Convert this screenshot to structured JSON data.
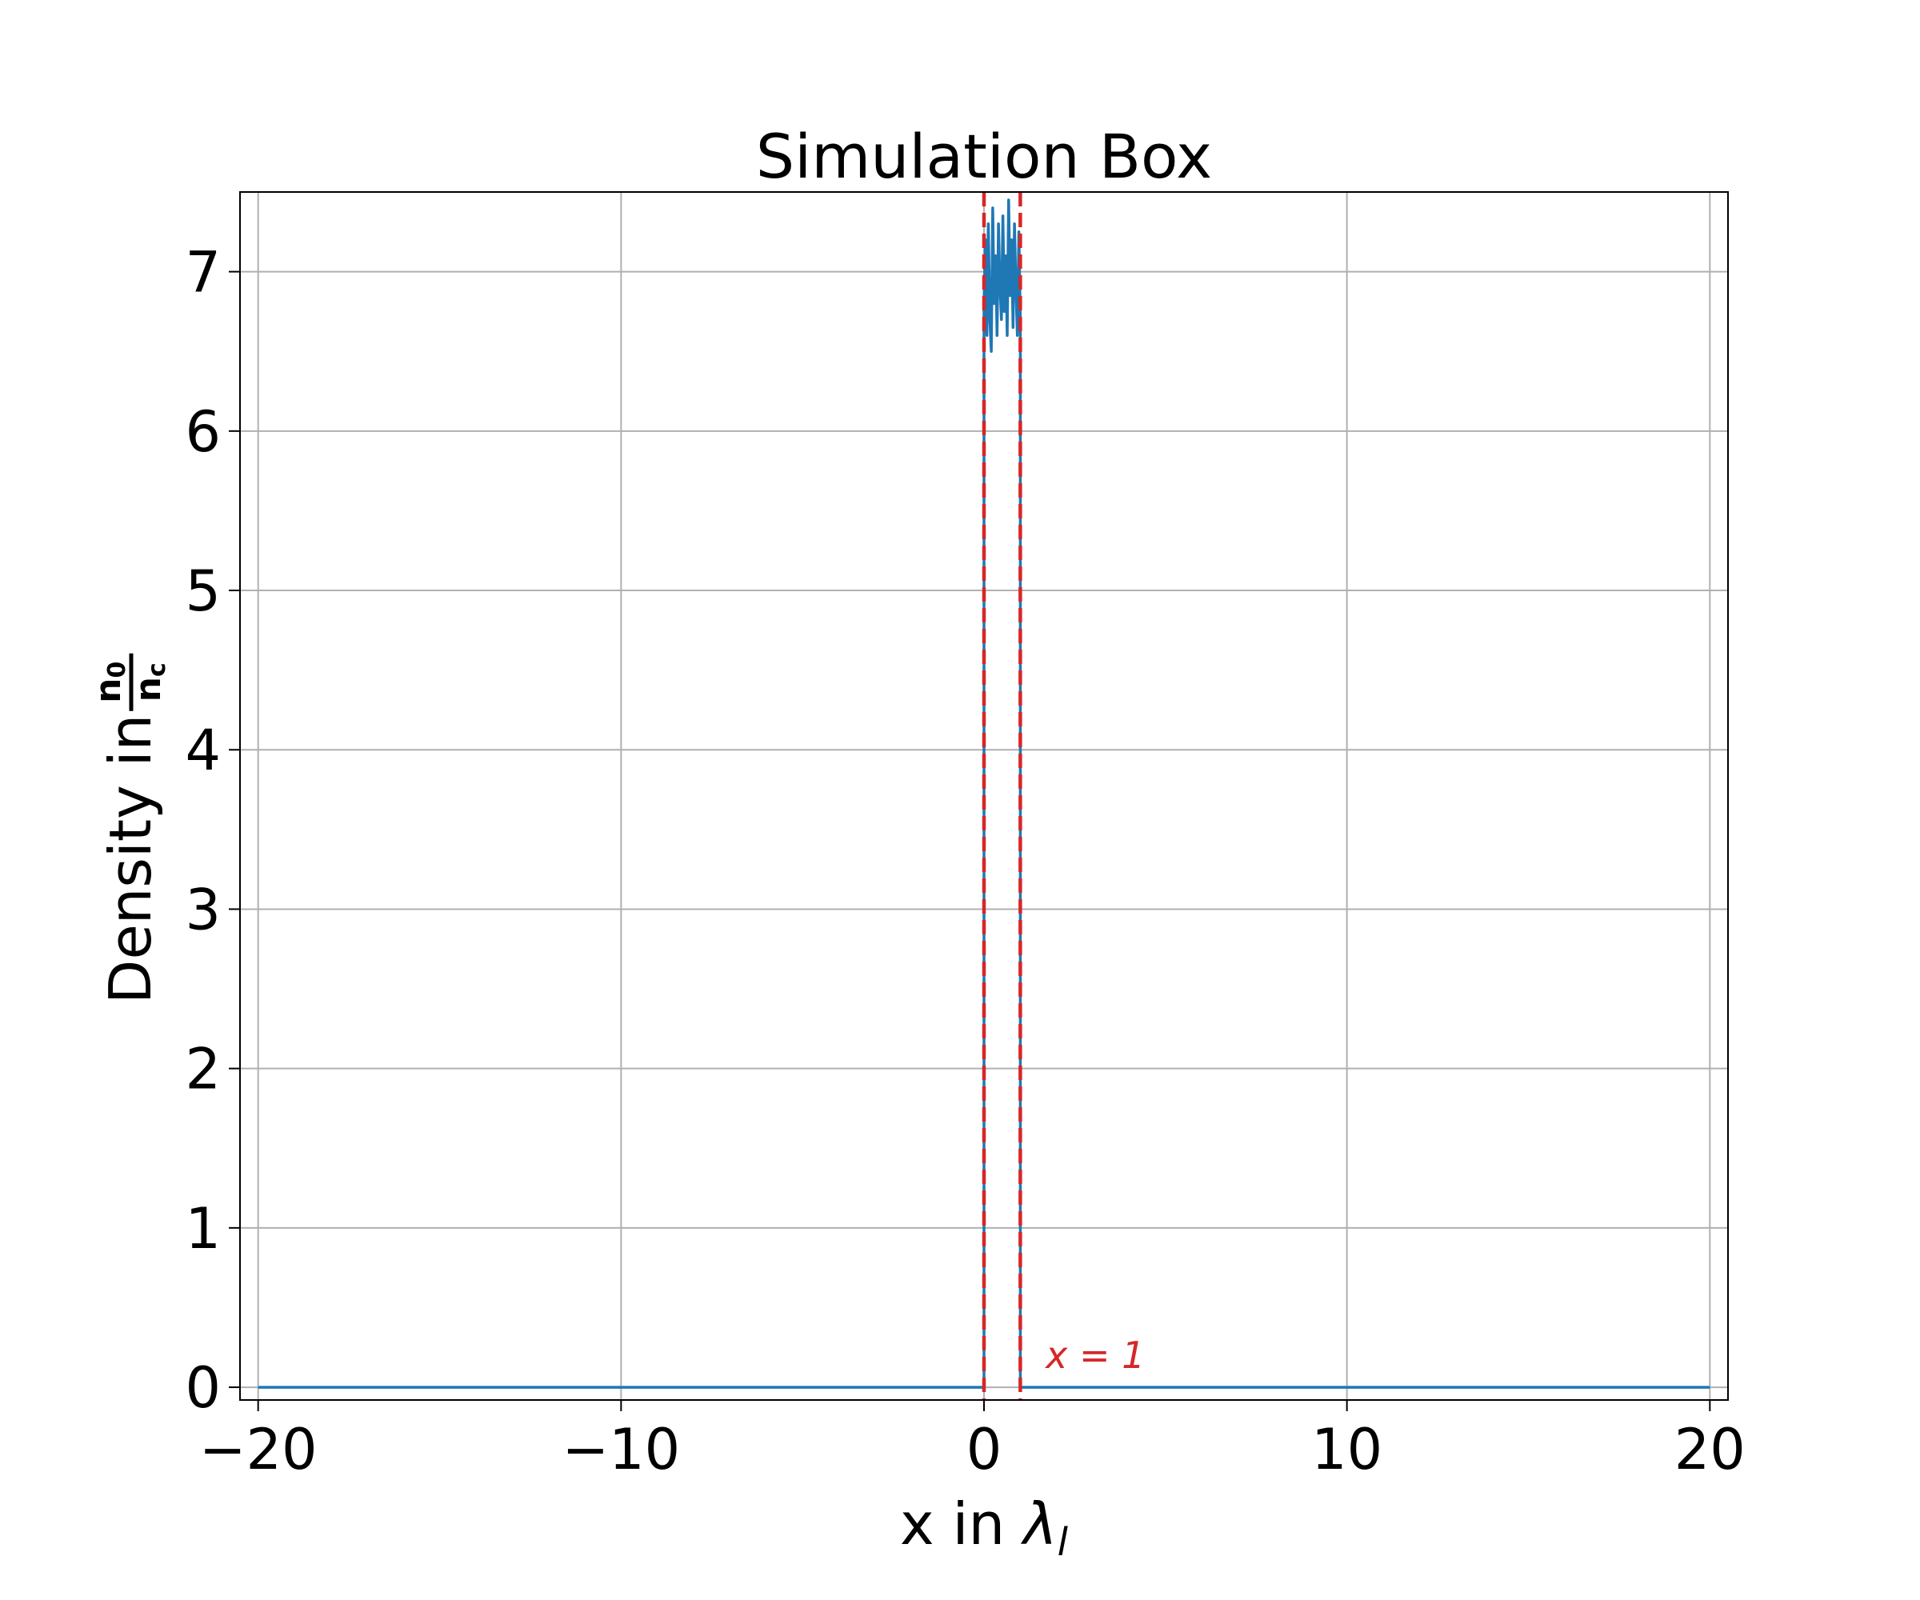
{
  "chart_data": {
    "type": "line",
    "title": "Simulation Box",
    "xlabel": {
      "prefix": "x in ",
      "symbol": "λ",
      "subscript": "l"
    },
    "ylabel": {
      "prefix": "Density in ",
      "numerator": "n",
      "numerator_sub": "0",
      "denominator": "n",
      "denominator_sub": "c"
    },
    "xlim": [
      -20.5,
      20.5
    ],
    "ylim": [
      -0.08,
      7.5
    ],
    "x_ticks": [
      {
        "value": -20,
        "label": "−20"
      },
      {
        "value": -10,
        "label": "−10"
      },
      {
        "value": 0,
        "label": "0"
      },
      {
        "value": 10,
        "label": "10"
      },
      {
        "value": 20,
        "label": "20"
      }
    ],
    "y_ticks": [
      {
        "value": 0,
        "label": "0"
      },
      {
        "value": 1,
        "label": "1"
      },
      {
        "value": 2,
        "label": "2"
      },
      {
        "value": 3,
        "label": "3"
      },
      {
        "value": 4,
        "label": "4"
      },
      {
        "value": 5,
        "label": "5"
      },
      {
        "value": 6,
        "label": "6"
      },
      {
        "value": 7,
        "label": "7"
      }
    ],
    "grid": true,
    "series": [
      {
        "color": "#1f77b4",
        "x": [
          -20,
          0,
          0,
          0.04,
          0.08,
          0.12,
          0.16,
          0.2,
          0.24,
          0.28,
          0.32,
          0.36,
          0.4,
          0.44,
          0.48,
          0.52,
          0.56,
          0.6,
          0.64,
          0.68,
          0.72,
          0.76,
          0.8,
          0.84,
          0.88,
          0.92,
          0.96,
          1,
          1,
          20
        ],
        "y": [
          0,
          0,
          6.8,
          7.2,
          6.6,
          7.3,
          6.7,
          6.5,
          7.4,
          6.8,
          7.1,
          6.6,
          7.3,
          6.9,
          6.7,
          7.35,
          6.75,
          7.1,
          6.6,
          7.45,
          6.85,
          7.2,
          6.65,
          7.3,
          6.9,
          6.6,
          7.25,
          6.7,
          0,
          0
        ]
      }
    ],
    "vlines": [
      {
        "x": 0,
        "color": "#d62728",
        "style": "dashed"
      },
      {
        "x": 1,
        "color": "#d62728",
        "style": "dashed"
      }
    ],
    "annotations": [
      {
        "text": "x = 1",
        "x": 1.7,
        "y": 0.12,
        "color": "#d62728"
      }
    ]
  }
}
